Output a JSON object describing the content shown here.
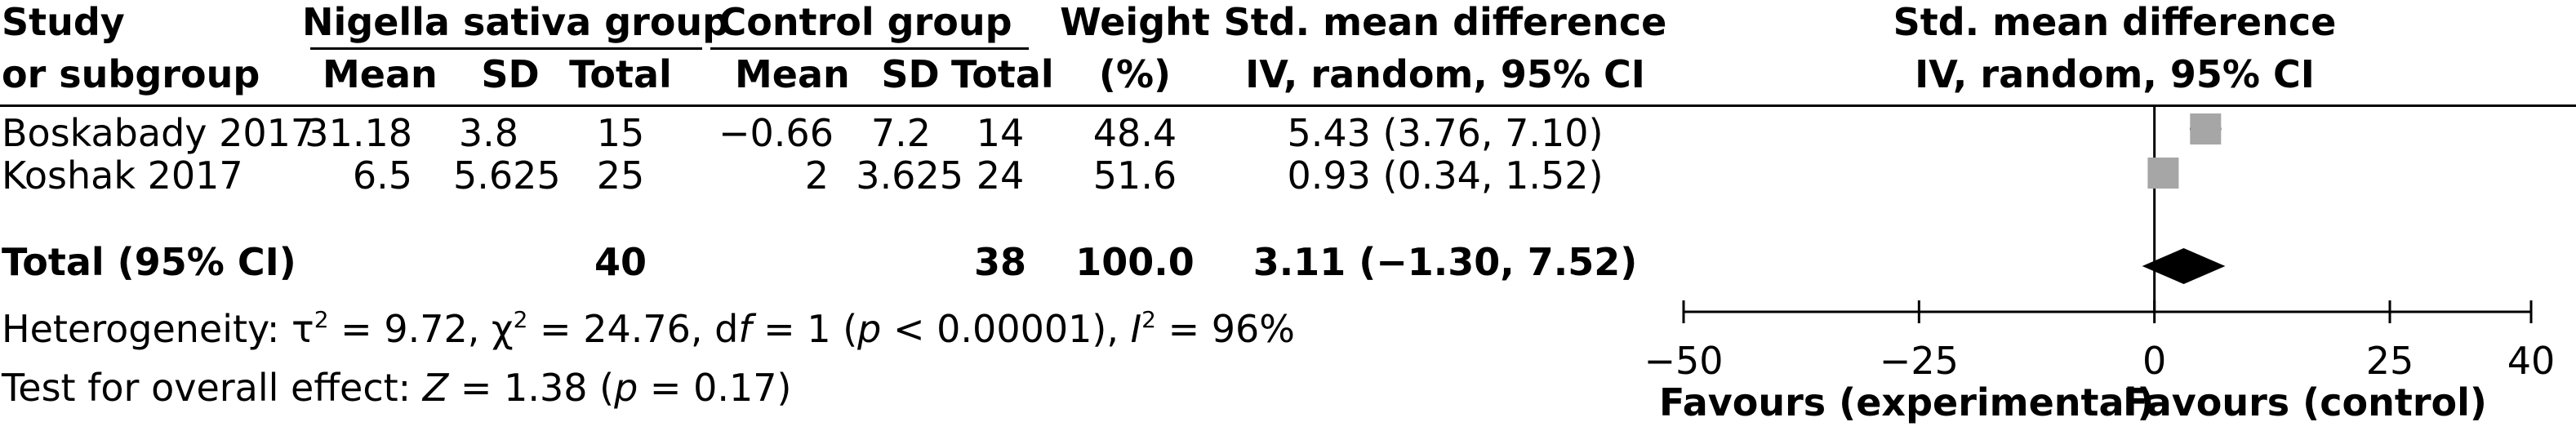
{
  "headers": {
    "study_line1": "Study",
    "study_line2": "or subgroup",
    "group1": "Nigella sativa group",
    "group2": "Control group",
    "mean": "Mean",
    "sd": "SD",
    "total": "Total",
    "weight_line1": "Weight",
    "weight_line2": "(%)",
    "smd_line1": "Std. mean difference",
    "smd_line2": "IV, random, 95% CI",
    "plot_line1": "Std. mean difference",
    "plot_line2": "IV, random, 95% CI"
  },
  "studies": [
    {
      "name": "Boskabady 2017",
      "mean1": "31.18",
      "sd1": "3.8",
      "total1": "15",
      "mean2": "−0.66",
      "sd2": "7.2",
      "total2": "14",
      "weight": "48.4",
      "ci_text": "5.43 (3.76, 7.10)"
    },
    {
      "name": "Koshak 2017",
      "mean1": "6.5",
      "sd1": "5.625",
      "total1": "25",
      "mean2": "2",
      "sd2": "3.625",
      "total2": "24",
      "weight": "51.6",
      "ci_text": "0.93 (0.34, 1.52)"
    }
  ],
  "total_row": {
    "label": "Total (95% CI)",
    "total1": "40",
    "total2": "38",
    "weight": "100.0",
    "ci_text": "3.11 (−1.30, 7.52)"
  },
  "heterogeneity": {
    "prefix": "Heterogeneity: τ",
    "tau_sup": "2",
    "mid1": " = 9.72, χ",
    "chi_sup": "2",
    "mid2": " = 24.76, d",
    "df_italic": "f",
    "mid3": " = 1 (",
    "p_italic": "p",
    "mid4": " < 0.00001), ",
    "i_italic": "I",
    "i_sup": "2",
    "suffix": " = 96%"
  },
  "overall_effect": {
    "prefix": "Test for overall effect: ",
    "z_italic": "Z",
    "mid": " = 1.38 (",
    "p_italic": "p",
    "suffix": " = 0.17)"
  },
  "axis": {
    "favours_left": "Favours (experimental)",
    "favours_right": "Favours (control)"
  },
  "chart_data": {
    "type": "scatter",
    "subtype": "forest-plot",
    "x_range": [
      -50,
      40
    ],
    "ticks": [
      -50,
      -25,
      0,
      25,
      40
    ],
    "tick_labels": [
      "−50",
      "−25",
      "0",
      "25",
      "40"
    ],
    "reference_line": 0,
    "studies": [
      {
        "name": "Boskabady 2017",
        "estimate": 5.43,
        "ci_low": 3.76,
        "ci_high": 7.1,
        "weight": 48.4
      },
      {
        "name": "Koshak 2017",
        "estimate": 0.93,
        "ci_low": 0.34,
        "ci_high": 1.52,
        "weight": 51.6
      }
    ],
    "pooled": {
      "estimate": 3.11,
      "ci_low": -1.3,
      "ci_high": 7.52
    },
    "marker_color": "#a6a6a6",
    "diamond_color": "#000000"
  }
}
